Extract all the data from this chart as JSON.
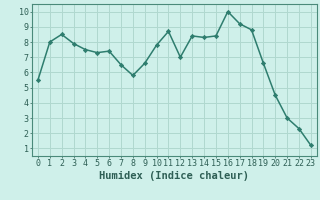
{
  "x": [
    0,
    1,
    2,
    3,
    4,
    5,
    6,
    7,
    8,
    9,
    10,
    11,
    12,
    13,
    14,
    15,
    16,
    17,
    18,
    19,
    20,
    21,
    22,
    23
  ],
  "y": [
    5.5,
    8.0,
    8.5,
    7.9,
    7.5,
    7.3,
    7.4,
    6.5,
    5.8,
    6.6,
    7.8,
    8.7,
    7.0,
    8.4,
    8.3,
    8.4,
    10.0,
    9.2,
    8.8,
    6.6,
    4.5,
    3.0,
    2.3,
    1.2
  ],
  "line_color": "#2e7d6e",
  "marker": "D",
  "marker_size": 2.2,
  "bg_color": "#cff0ea",
  "grid_color": "#b0d8cf",
  "xlabel": "Humidex (Indice chaleur)",
  "xlim": [
    -0.5,
    23.5
  ],
  "ylim": [
    0.5,
    10.5
  ],
  "yticks": [
    1,
    2,
    3,
    4,
    5,
    6,
    7,
    8,
    9,
    10
  ],
  "xticks": [
    0,
    1,
    2,
    3,
    4,
    5,
    6,
    7,
    8,
    9,
    10,
    11,
    12,
    13,
    14,
    15,
    16,
    17,
    18,
    19,
    20,
    21,
    22,
    23
  ],
  "text_color": "#2e5f55",
  "xlabel_fontsize": 7.5,
  "tick_fontsize": 6.0,
  "axis_color": "#4a8a7a",
  "linewidth": 1.1
}
